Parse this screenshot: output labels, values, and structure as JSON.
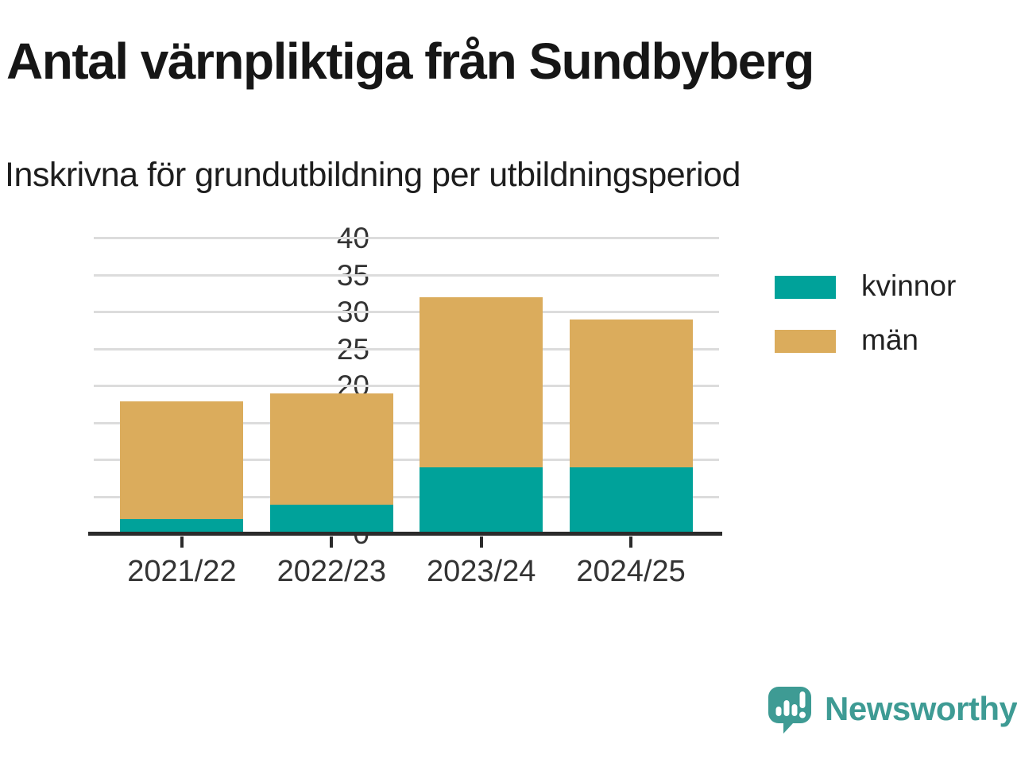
{
  "header": {
    "title": "Antal värnpliktiga från Sundbyberg",
    "subtitle": "Inskrivna för grundutbildning per utbildningsperiod"
  },
  "chart_data": {
    "type": "bar",
    "stacked": true,
    "title": "Antal värnpliktiga från Sundbyberg",
    "subtitle": "Inskrivna för grundutbildning per utbildningsperiod",
    "categories": [
      "2021/22",
      "2022/23",
      "2023/24",
      "2024/25"
    ],
    "series": [
      {
        "name": "kvinnor",
        "color": "#00a29a",
        "values": [
          2,
          4,
          9,
          9
        ]
      },
      {
        "name": "män",
        "color": "#dbac5c",
        "values": [
          16,
          15,
          23,
          20
        ]
      }
    ],
    "stack_totals": [
      18,
      19,
      32,
      29
    ],
    "xlabel": "",
    "ylabel": "",
    "ylim": [
      0,
      40
    ],
    "yticks": [
      0,
      5,
      10,
      15,
      20,
      25,
      30,
      35,
      40
    ],
    "grid": true,
    "legend_position": "right"
  },
  "colors": {
    "kvinnor": "#00a29a",
    "man": "#dbac5c",
    "grid": "#dcdcdc",
    "axis": "#2b2b2b",
    "tick_text": "#333333",
    "title_text": "#161616",
    "brand_teal": "#3e9b94"
  },
  "footer": {
    "brand_name": "Newsworthy",
    "logo_icon": "newsworthy-speech-bubble-bar-chart-icon"
  }
}
